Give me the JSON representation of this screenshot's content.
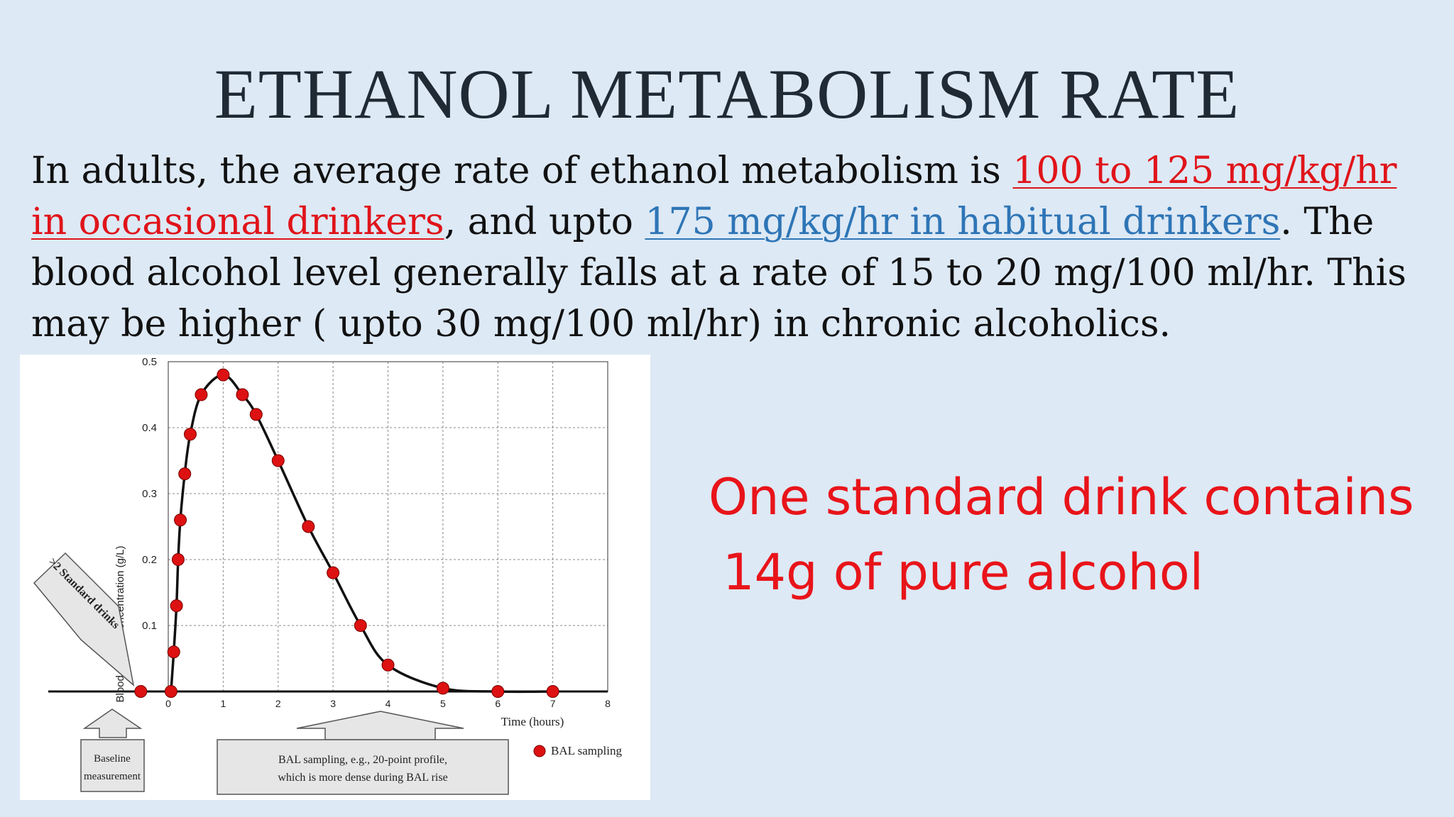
{
  "slide": {
    "title": "ETHANOL METABOLISM RATE",
    "paragraph": {
      "part1": "In adults, the average rate of ethanol metabolism is ",
      "highlight_red": "100 to 125 mg/kg/hr in occasional drinkers",
      "part2": ", and upto ",
      "highlight_blue": "175 mg/kg/hr in habitual drinkers",
      "part3": ". The blood alcohol level generally falls at a rate of 15 to 20 mg/100 ml/hr. This may be higher ( upto 30 mg/100 ml/hr) in chronic alcoholics."
    },
    "callout": {
      "line1": "One standard drink contains",
      "line2": "14g of pure alcohol"
    },
    "colors": {
      "background": "#dde9f5",
      "highlight_red": "#e0141a",
      "highlight_blue": "#2e75b6",
      "callout": "#e8141a",
      "data_point": "#dd1111"
    }
  },
  "chart_data": {
    "type": "line",
    "title": "",
    "xlabel": "Time (hours)",
    "ylabel": "Blood ethanol concentration (g/L)",
    "xlim": [
      0,
      8
    ],
    "ylim": [
      0,
      0.5
    ],
    "xticks": [
      "0",
      "1",
      "2",
      "3",
      "4",
      "5",
      "6",
      "7",
      "8"
    ],
    "yticks": [
      "0.1",
      "0.2",
      "0.3",
      "0.4",
      "0.5"
    ],
    "grid": true,
    "legend": {
      "position": "bottom-right",
      "label": "BAL sampling"
    },
    "series": [
      {
        "name": "BAL sampling",
        "points": [
          [
            -0.5,
            0.0
          ],
          [
            0.05,
            0.0
          ],
          [
            0.1,
            0.06
          ],
          [
            0.15,
            0.13
          ],
          [
            0.18,
            0.2
          ],
          [
            0.22,
            0.26
          ],
          [
            0.3,
            0.33
          ],
          [
            0.4,
            0.39
          ],
          [
            0.6,
            0.45
          ],
          [
            1.0,
            0.48
          ],
          [
            1.35,
            0.45
          ],
          [
            1.6,
            0.42
          ],
          [
            2.0,
            0.35
          ],
          [
            2.55,
            0.25
          ],
          [
            3.0,
            0.18
          ],
          [
            3.5,
            0.1
          ],
          [
            4.0,
            0.04
          ],
          [
            5.0,
            0.005
          ],
          [
            6.0,
            0.0
          ],
          [
            7.0,
            0.0
          ]
        ]
      }
    ],
    "annotations": {
      "arrow_label": ">2 Standard drinks",
      "baseline_box": [
        "Baseline",
        "measurement"
      ],
      "sampling_box": [
        "BAL sampling, e.g., 20-point profile,",
        "which is more dense during BAL rise"
      ]
    }
  }
}
